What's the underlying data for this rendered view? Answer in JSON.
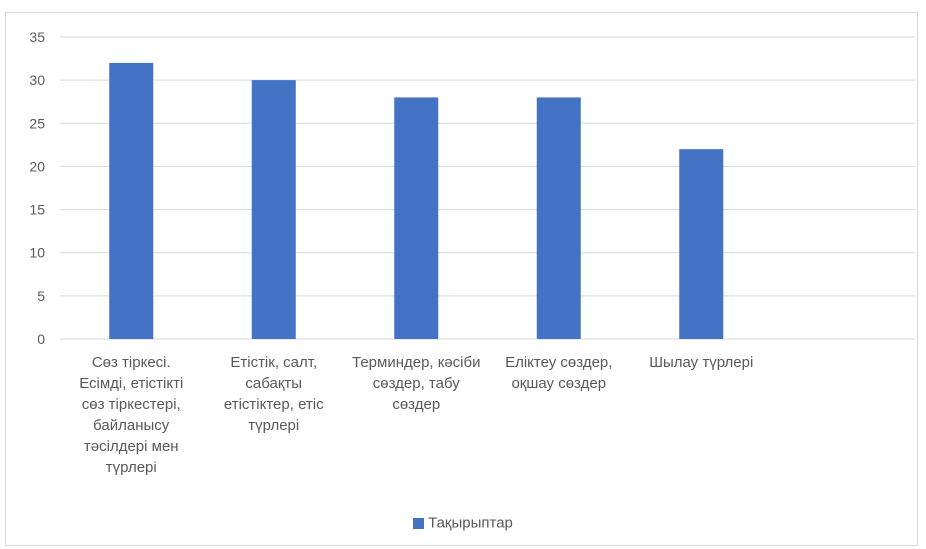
{
  "chart_data": {
    "type": "bar",
    "categories": [
      "Сөз тіркесі. Есімді, етістікті сөз тіркестері, байланысу тәсілдері мен түрлері",
      "Етістік, салт, сабақты етістіктер, етіс түрлері",
      "Терминдер, кәсіби сөздер, табу сөздер",
      "Еліктеу сөздер, оқшау сөздер",
      "Шылау түрлері"
    ],
    "series": [
      {
        "name": "Тақырыптар",
        "values": [
          32,
          30,
          28,
          28,
          22
        ],
        "color": "#4472c4"
      }
    ],
    "ylim": [
      0,
      35
    ],
    "yticks": [
      0,
      5,
      10,
      15,
      20,
      25,
      30,
      35
    ],
    "grid": true,
    "legend": "bottom",
    "colors": {
      "grid": "#d9d9d9",
      "text": "#595959"
    }
  }
}
